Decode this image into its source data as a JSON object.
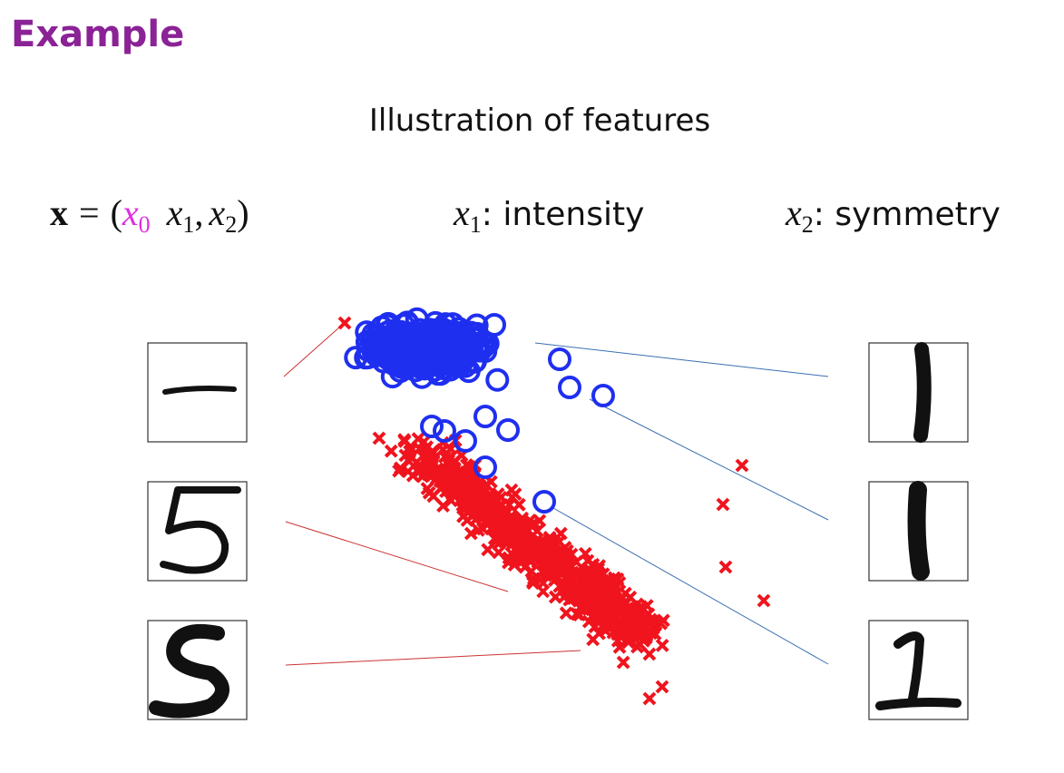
{
  "header": {
    "title": "Example"
  },
  "slide": {
    "heading": "Illustration of features",
    "vector": {
      "symbol": "x",
      "equals": "=",
      "open": "(",
      "components": [
        {
          "symbol": "x",
          "sub": "0"
        },
        {
          "symbol": "x",
          "sub": "1"
        },
        {
          "symbol": "x",
          "sub": "2"
        }
      ],
      "separator": ",",
      "close": ")"
    },
    "features": [
      {
        "symbol": "x",
        "sub": "1",
        "label": ": intensity"
      },
      {
        "symbol": "x",
        "sub": "2",
        "label": ": symmetry"
      }
    ]
  }
}
